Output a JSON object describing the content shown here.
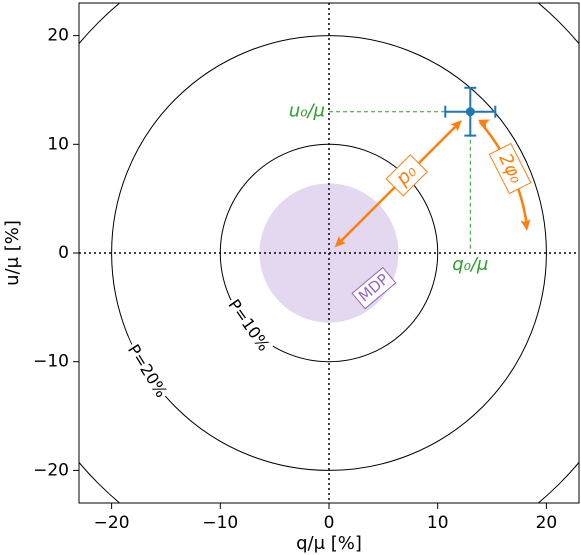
{
  "chart_data": {
    "type": "scatter",
    "xlabel": "q/μ [%]",
    "ylabel": "u/μ [%]",
    "xlim": [
      -23,
      23
    ],
    "ylim": [
      -23,
      23
    ],
    "xticks": [
      -20,
      -10,
      0,
      10,
      20
    ],
    "yticks": [
      -20,
      -10,
      0,
      10,
      20
    ],
    "xtick_labels": [
      "−20",
      "−10",
      "0",
      "10",
      "20"
    ],
    "ytick_labels": [
      "−20",
      "−10",
      "0",
      "10",
      "20"
    ],
    "grid": false,
    "point": {
      "q": 13,
      "u": 13,
      "xerr": 2.3,
      "yerr": 2.2
    },
    "contours": [
      {
        "label": "P=10%",
        "radius": 10
      },
      {
        "label": "P=20%",
        "radius": 20
      },
      {
        "label": "",
        "radius": 30
      }
    ],
    "mdp": {
      "label": "MDP",
      "radius": 6.4
    },
    "annotations": {
      "u0": "u₀/μ",
      "q0": "q₀/μ",
      "p0": "p₀",
      "phi": "2φ₀"
    },
    "colors": {
      "point": "#1f77b4",
      "guides": "#2ca02c",
      "arrows": "#ff7f0e",
      "mdp_fill": "#e4d8f0",
      "mdp_text": "#9467bd",
      "contour": "#000000"
    }
  }
}
